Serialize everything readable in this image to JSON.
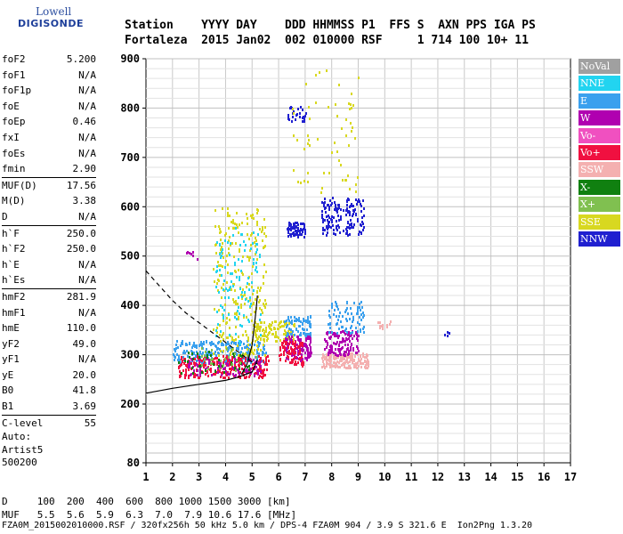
{
  "logo": {
    "line1": "Lowell",
    "line2": "DIGISONDE"
  },
  "header": {
    "labels": "Station    YYYY DAY    DDD HHMMSS P1  FFS S  AXN PPS IGA PS",
    "values": "Fortaleza  2015 Jan02  002 010000 RSF     1 714 100 10+ 11"
  },
  "params": [
    {
      "label": "foF2",
      "value": "5.200"
    },
    {
      "label": "foF1",
      "value": "N/A"
    },
    {
      "label": "foF1p",
      "value": "N/A"
    },
    {
      "label": "foE",
      "value": "N/A"
    },
    {
      "label": "foEp",
      "value": "0.46"
    },
    {
      "label": "fxI",
      "value": "N/A"
    },
    {
      "label": "foEs",
      "value": "N/A"
    },
    {
      "label": "fmin",
      "value": "2.90"
    },
    {
      "label": "MUF(D)",
      "value": "17.56"
    },
    {
      "label": "M(D)",
      "value": "3.38"
    },
    {
      "label": "D",
      "value": "N/A"
    },
    {
      "label": "h`F",
      "value": "250.0"
    },
    {
      "label": "h`F2",
      "value": "250.0"
    },
    {
      "label": "h`E",
      "value": "N/A"
    },
    {
      "label": "h`Es",
      "value": "N/A"
    },
    {
      "label": "hmF2",
      "value": "281.9"
    },
    {
      "label": "hmF1",
      "value": "N/A"
    },
    {
      "label": "hmE",
      "value": "110.0"
    },
    {
      "label": "yF2",
      "value": "49.0"
    },
    {
      "label": "yF1",
      "value": "N/A"
    },
    {
      "label": "yE",
      "value": "20.0"
    },
    {
      "label": "B0",
      "value": "41.8"
    },
    {
      "label": "B1",
      "value": "3.69"
    },
    {
      "label": "C-level",
      "value": "55"
    }
  ],
  "auto": {
    "line1": "Auto:",
    "line2": "Artist5",
    "line3": "500200"
  },
  "table": {
    "row1": "D     100  200  400  600  800 1000 1500 3000 [km]",
    "row2": "MUF   5.5  5.6  5.9  6.3  7.0  7.9 10.6 17.6 [MHz]"
  },
  "footer": "FZA0M_2015002010000.RSF / 320fx256h 50 kHz 5.0 km / DPS-4 FZA0M 904 / 3.9 S 321.6 E  Ion2Png 1.3.20",
  "legend": [
    {
      "name": "NoVal",
      "color": "#a0a0a0"
    },
    {
      "name": "NNE",
      "color": "#22d4f0"
    },
    {
      "name": "E",
      "color": "#3aa0ee"
    },
    {
      "name": "W",
      "color": "#b000b0"
    },
    {
      "name": "Vo-",
      "color": "#f050c0"
    },
    {
      "name": "Vo+",
      "color": "#f01040"
    },
    {
      "name": "SSW",
      "color": "#f4b0b0"
    },
    {
      "name": "X-",
      "color": "#108010"
    },
    {
      "name": "X+",
      "color": "#80c050"
    },
    {
      "name": "SSE",
      "color": "#d8d820"
    },
    {
      "name": "NNW",
      "color": "#2020d0"
    }
  ],
  "chart_data": {
    "type": "scatter",
    "xlim": [
      1,
      17
    ],
    "ylim": [
      80,
      900
    ],
    "x_ticks": [
      "1",
      "2",
      "3",
      "4",
      "5",
      "6",
      "7",
      "8",
      "9",
      "10",
      "11",
      "12",
      "13",
      "14",
      "15",
      "16",
      "17"
    ],
    "y_ticks": [
      "80",
      "200",
      "300",
      "400",
      "500",
      "600",
      "700",
      "800",
      "900"
    ],
    "y_tick_values": [
      80,
      200,
      300,
      400,
      500,
      600,
      700,
      800,
      900
    ],
    "grid": true,
    "clusters": [
      {
        "color": "#3aa0ee",
        "xmin": 2.0,
        "xmax": 5.5,
        "ymin": 285,
        "ymax": 330,
        "n": 260
      },
      {
        "color": "#f01040",
        "xmin": 2.2,
        "xmax": 5.6,
        "ymin": 255,
        "ymax": 300,
        "n": 280
      },
      {
        "color": "#b000b0",
        "xmin": 2.5,
        "xmax": 5.4,
        "ymin": 260,
        "ymax": 295,
        "n": 90
      },
      {
        "color": "#d8d820",
        "xmin": 3.5,
        "xmax": 5.5,
        "ymin": 300,
        "ymax": 600,
        "n": 260
      },
      {
        "color": "#22d4f0",
        "xmin": 3.6,
        "xmax": 5.3,
        "ymin": 320,
        "ymax": 560,
        "n": 110
      },
      {
        "color": "#d8d820",
        "xmin": 5.0,
        "xmax": 6.6,
        "ymin": 330,
        "ymax": 370,
        "n": 120
      },
      {
        "color": "#3aa0ee",
        "xmin": 6.2,
        "xmax": 7.2,
        "ymin": 340,
        "ymax": 380,
        "n": 70
      },
      {
        "color": "#b000b0",
        "xmin": 6.2,
        "xmax": 7.2,
        "ymin": 290,
        "ymax": 340,
        "n": 130
      },
      {
        "color": "#f01040",
        "xmin": 6.0,
        "xmax": 6.9,
        "ymin": 280,
        "ymax": 330,
        "n": 90
      },
      {
        "color": "#f4b0b0",
        "xmin": 7.6,
        "xmax": 9.4,
        "ymin": 275,
        "ymax": 305,
        "n": 180
      },
      {
        "color": "#b000b0",
        "xmin": 7.7,
        "xmax": 9.0,
        "ymin": 300,
        "ymax": 350,
        "n": 130
      },
      {
        "color": "#3aa0ee",
        "xmin": 7.8,
        "xmax": 9.2,
        "ymin": 345,
        "ymax": 410,
        "n": 80
      },
      {
        "color": "#2020d0",
        "xmin": 6.3,
        "xmax": 7.0,
        "ymin": 540,
        "ymax": 570,
        "n": 70
      },
      {
        "color": "#2020d0",
        "xmin": 7.6,
        "xmax": 9.2,
        "ymin": 545,
        "ymax": 620,
        "n": 160
      },
      {
        "color": "#2020d0",
        "xmin": 6.3,
        "xmax": 7.0,
        "ymin": 775,
        "ymax": 805,
        "n": 30
      },
      {
        "color": "#d8d820",
        "xmin": 6.5,
        "xmax": 9.0,
        "ymin": 620,
        "ymax": 880,
        "n": 60
      },
      {
        "color": "#f4b0b0",
        "xmin": 9.7,
        "xmax": 10.2,
        "ymin": 355,
        "ymax": 370,
        "n": 12
      },
      {
        "color": "#2020d0",
        "xmin": 12.2,
        "xmax": 12.4,
        "ymin": 340,
        "ymax": 350,
        "n": 4
      },
      {
        "color": "#b000b0",
        "xmin": 2.5,
        "xmax": 3.0,
        "ymin": 495,
        "ymax": 520,
        "n": 8
      },
      {
        "color": "#108010",
        "xmin": 2.2,
        "xmax": 5.0,
        "ymin": 265,
        "ymax": 310,
        "n": 40
      },
      {
        "color": "#80c050",
        "xmin": 3.0,
        "xmax": 5.2,
        "ymin": 270,
        "ymax": 320,
        "n": 30
      }
    ],
    "profile_curve": {
      "x": [
        1.0,
        1.5,
        2.0,
        2.5,
        3.0,
        3.5,
        4.0,
        4.5,
        5.0,
        5.2
      ],
      "y": [
        470,
        440,
        410,
        385,
        365,
        345,
        325,
        305,
        285,
        282
      ]
    },
    "trace_lower": {
      "x": [
        1.0,
        2.0,
        3.0,
        4.0,
        4.5,
        5.0,
        5.2
      ],
      "y": [
        222,
        232,
        240,
        248,
        255,
        265,
        290
      ]
    },
    "trace_vertical": {
      "x": [
        4.6,
        4.8,
        5.0,
        5.15,
        5.2
      ],
      "y": [
        260,
        280,
        320,
        390,
        420
      ]
    }
  }
}
